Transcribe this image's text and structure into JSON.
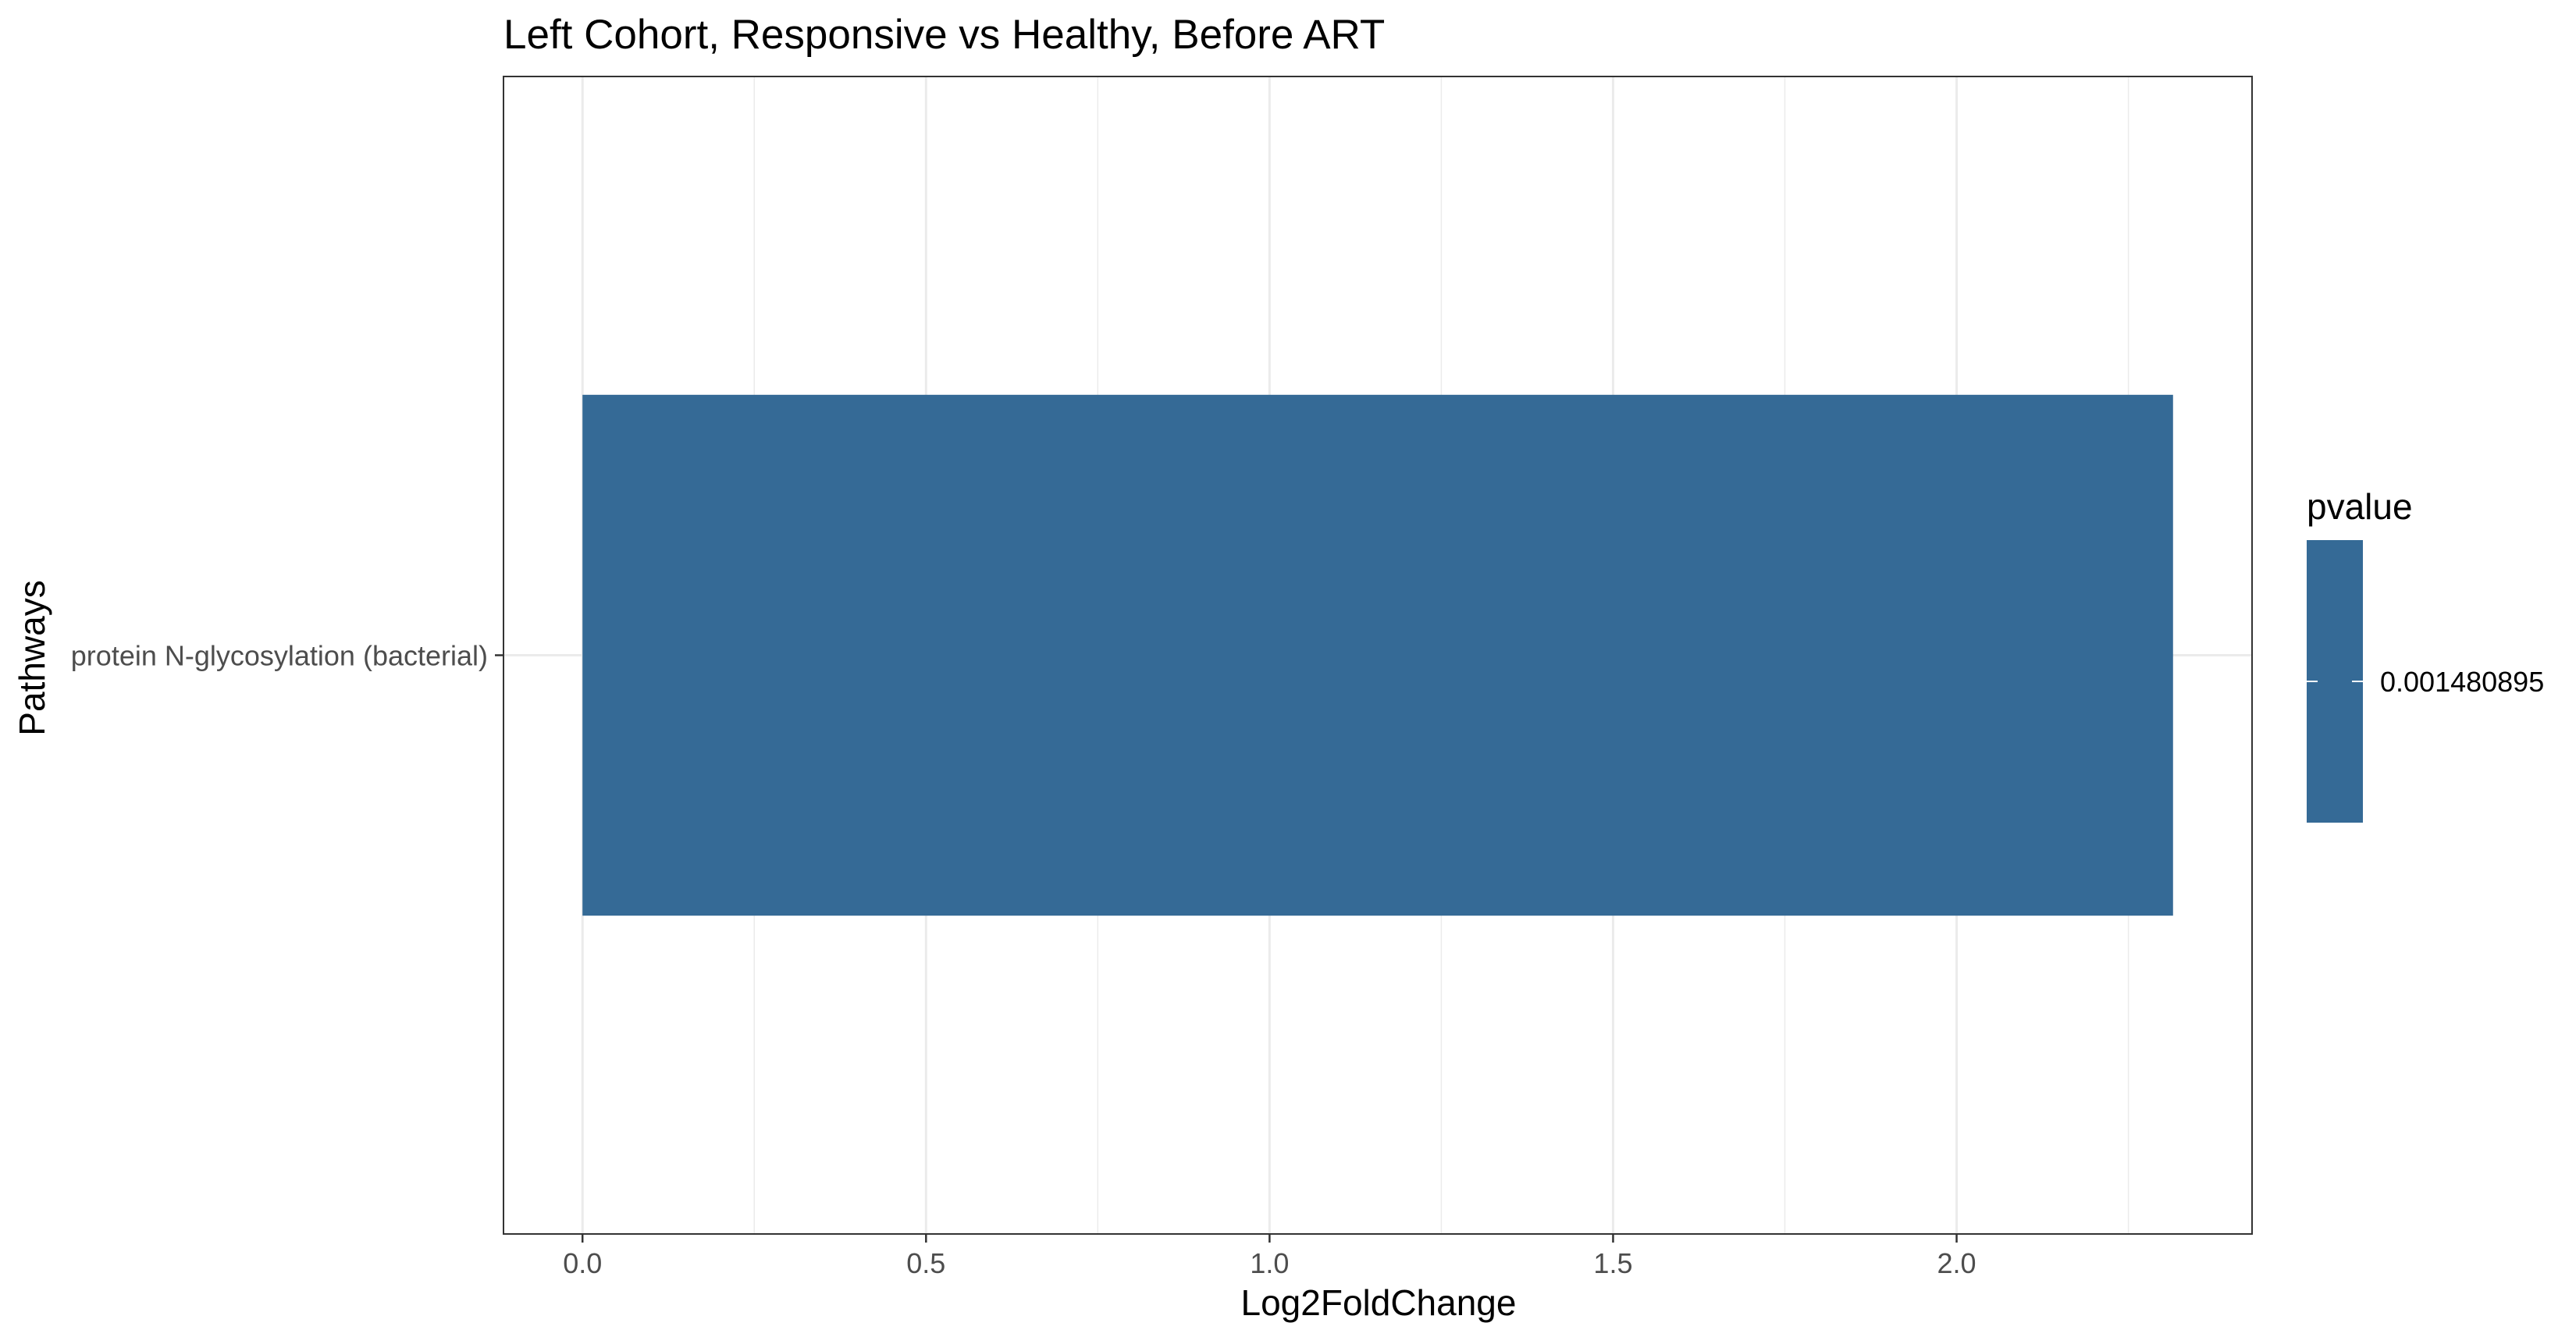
{
  "chart_data": {
    "type": "bar",
    "orientation": "horizontal",
    "title": "Left Cohort, Responsive vs Healthy, Before ART",
    "xlabel": "Log2FoldChange",
    "ylabel": "Pathways",
    "categories": [
      "protein N-glycosylation (bacterial)"
    ],
    "values": [
      2.315
    ],
    "xlim": [
      -0.115,
      2.43
    ],
    "x_ticks": [
      0.0,
      0.5,
      1.0,
      1.5,
      2.0
    ],
    "x_tick_labels": [
      "0.0",
      "0.5",
      "1.0",
      "1.5",
      "2.0"
    ],
    "grid": true,
    "legend": {
      "title": "pvalue",
      "placement": "right",
      "labels": [
        "0.001480895"
      ],
      "color": "#356A96"
    },
    "bar_color": "#356A96"
  }
}
